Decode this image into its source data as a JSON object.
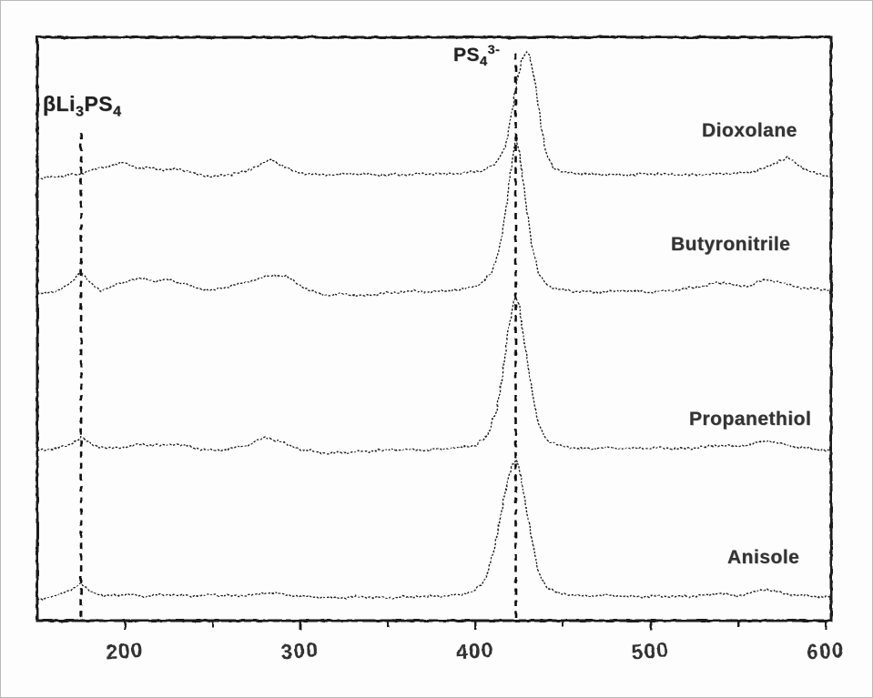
{
  "figure": {
    "phase_label": {
      "prefix": "βLi",
      "sub1": "3",
      "mid": "PS",
      "sub2": "4"
    },
    "peak_label": {
      "prefix": "PS",
      "sub": "4",
      "sup": "3-"
    }
  },
  "colors": {
    "line": "#1a1a1a",
    "dashed": "#111111",
    "text": "#333333",
    "background": "#fdfdfd"
  },
  "chart_data": {
    "type": "line",
    "title": "",
    "xlabel": "",
    "ylabel": "",
    "legend_position": "right-inline",
    "grid": false,
    "x_axis": {
      "min": 150,
      "max": 603,
      "major_ticks": [
        200,
        300,
        400,
        500,
        600
      ],
      "minor_ticks": [
        250,
        350,
        450,
        550
      ]
    },
    "y_axis": {
      "min": 0,
      "max": 1,
      "visible": false,
      "note": "intensity a.u., spectra stacked with offsets"
    },
    "dashed_lines": [
      {
        "x": 175,
        "y_top_norm": 0.836
      },
      {
        "x": 423,
        "y_top_norm": 0.972
      }
    ],
    "series": [
      {
        "name": "Dioxolane",
        "points": [
          [
            150,
            0.757
          ],
          [
            160,
            0.761
          ],
          [
            170,
            0.764
          ],
          [
            178,
            0.769
          ],
          [
            188,
            0.778
          ],
          [
            200,
            0.785
          ],
          [
            208,
            0.775
          ],
          [
            215,
            0.777
          ],
          [
            222,
            0.772
          ],
          [
            230,
            0.775
          ],
          [
            240,
            0.766
          ],
          [
            250,
            0.761
          ],
          [
            258,
            0.764
          ],
          [
            265,
            0.768
          ],
          [
            272,
            0.774
          ],
          [
            283,
            0.791
          ],
          [
            290,
            0.78
          ],
          [
            297,
            0.769
          ],
          [
            310,
            0.764
          ],
          [
            330,
            0.766
          ],
          [
            350,
            0.764
          ],
          [
            370,
            0.766
          ],
          [
            385,
            0.766
          ],
          [
            395,
            0.768
          ],
          [
            405,
            0.772
          ],
          [
            412,
            0.785
          ],
          [
            417,
            0.813
          ],
          [
            421,
            0.875
          ],
          [
            424,
            0.93
          ],
          [
            427,
            0.966
          ],
          [
            429,
            0.977
          ],
          [
            431,
            0.969
          ],
          [
            434,
            0.922
          ],
          [
            437,
            0.86
          ],
          [
            440,
            0.805
          ],
          [
            444,
            0.778
          ],
          [
            450,
            0.769
          ],
          [
            460,
            0.766
          ],
          [
            480,
            0.764
          ],
          [
            500,
            0.766
          ],
          [
            520,
            0.764
          ],
          [
            540,
            0.766
          ],
          [
            555,
            0.768
          ],
          [
            565,
            0.775
          ],
          [
            572,
            0.786
          ],
          [
            578,
            0.794
          ],
          [
            584,
            0.782
          ],
          [
            590,
            0.771
          ],
          [
            595,
            0.766
          ],
          [
            600,
            0.763
          ],
          [
            603,
            0.761
          ]
        ]
      },
      {
        "name": "Butyronitrile",
        "points": [
          [
            150,
            0.56
          ],
          [
            158,
            0.563
          ],
          [
            165,
            0.569
          ],
          [
            170,
            0.582
          ],
          [
            175,
            0.598
          ],
          [
            180,
            0.579
          ],
          [
            186,
            0.566
          ],
          [
            195,
            0.576
          ],
          [
            203,
            0.583
          ],
          [
            210,
            0.587
          ],
          [
            218,
            0.582
          ],
          [
            225,
            0.585
          ],
          [
            232,
            0.579
          ],
          [
            240,
            0.571
          ],
          [
            250,
            0.566
          ],
          [
            260,
            0.573
          ],
          [
            268,
            0.579
          ],
          [
            277,
            0.587
          ],
          [
            285,
            0.593
          ],
          [
            292,
            0.59
          ],
          [
            298,
            0.579
          ],
          [
            305,
            0.566
          ],
          [
            315,
            0.558
          ],
          [
            325,
            0.56
          ],
          [
            335,
            0.557
          ],
          [
            345,
            0.56
          ],
          [
            355,
            0.563
          ],
          [
            365,
            0.565
          ],
          [
            375,
            0.563
          ],
          [
            385,
            0.566
          ],
          [
            395,
            0.569
          ],
          [
            403,
            0.576
          ],
          [
            409,
            0.594
          ],
          [
            414,
            0.641
          ],
          [
            418,
            0.719
          ],
          [
            421,
            0.789
          ],
          [
            423,
            0.825
          ],
          [
            425,
            0.805
          ],
          [
            428,
            0.735
          ],
          [
            432,
            0.649
          ],
          [
            436,
            0.594
          ],
          [
            441,
            0.576
          ],
          [
            447,
            0.568
          ],
          [
            455,
            0.565
          ],
          [
            470,
            0.563
          ],
          [
            485,
            0.566
          ],
          [
            500,
            0.563
          ],
          [
            512,
            0.566
          ],
          [
            525,
            0.571
          ],
          [
            535,
            0.577
          ],
          [
            542,
            0.58
          ],
          [
            550,
            0.573
          ],
          [
            558,
            0.576
          ],
          [
            566,
            0.585
          ],
          [
            572,
            0.582
          ],
          [
            580,
            0.574
          ],
          [
            590,
            0.569
          ],
          [
            600,
            0.568
          ],
          [
            603,
            0.566
          ]
        ]
      },
      {
        "name": "Propanethiol",
        "points": [
          [
            150,
            0.292
          ],
          [
            160,
            0.295
          ],
          [
            168,
            0.301
          ],
          [
            175,
            0.314
          ],
          [
            182,
            0.301
          ],
          [
            190,
            0.295
          ],
          [
            200,
            0.298
          ],
          [
            210,
            0.303
          ],
          [
            220,
            0.3
          ],
          [
            230,
            0.303
          ],
          [
            240,
            0.296
          ],
          [
            250,
            0.292
          ],
          [
            260,
            0.295
          ],
          [
            270,
            0.301
          ],
          [
            280,
            0.314
          ],
          [
            287,
            0.309
          ],
          [
            294,
            0.3
          ],
          [
            302,
            0.292
          ],
          [
            315,
            0.287
          ],
          [
            330,
            0.289
          ],
          [
            345,
            0.292
          ],
          [
            360,
            0.293
          ],
          [
            375,
            0.293
          ],
          [
            390,
            0.296
          ],
          [
            400,
            0.301
          ],
          [
            407,
            0.317
          ],
          [
            412,
            0.36
          ],
          [
            416,
            0.431
          ],
          [
            419,
            0.501
          ],
          [
            422,
            0.548
          ],
          [
            423,
            0.555
          ],
          [
            425,
            0.54
          ],
          [
            428,
            0.477
          ],
          [
            432,
            0.399
          ],
          [
            436,
            0.337
          ],
          [
            441,
            0.309
          ],
          [
            448,
            0.3
          ],
          [
            460,
            0.295
          ],
          [
            475,
            0.296
          ],
          [
            490,
            0.295
          ],
          [
            505,
            0.296
          ],
          [
            520,
            0.295
          ],
          [
            532,
            0.298
          ],
          [
            540,
            0.301
          ],
          [
            548,
            0.298
          ],
          [
            558,
            0.303
          ],
          [
            566,
            0.309
          ],
          [
            574,
            0.304
          ],
          [
            582,
            0.298
          ],
          [
            592,
            0.295
          ],
          [
            600,
            0.292
          ],
          [
            603,
            0.29
          ]
        ]
      },
      {
        "name": "Anisole",
        "points": [
          [
            150,
            0.036
          ],
          [
            158,
            0.041
          ],
          [
            166,
            0.048
          ],
          [
            172,
            0.058
          ],
          [
            175,
            0.062
          ],
          [
            180,
            0.051
          ],
          [
            188,
            0.042
          ],
          [
            200,
            0.045
          ],
          [
            212,
            0.042
          ],
          [
            225,
            0.045
          ],
          [
            238,
            0.042
          ],
          [
            250,
            0.045
          ],
          [
            262,
            0.042
          ],
          [
            275,
            0.045
          ],
          [
            283,
            0.048
          ],
          [
            292,
            0.044
          ],
          [
            305,
            0.041
          ],
          [
            320,
            0.039
          ],
          [
            335,
            0.041
          ],
          [
            350,
            0.039
          ],
          [
            365,
            0.041
          ],
          [
            380,
            0.042
          ],
          [
            392,
            0.045
          ],
          [
            400,
            0.051
          ],
          [
            406,
            0.072
          ],
          [
            411,
            0.126
          ],
          [
            415,
            0.189
          ],
          [
            419,
            0.248
          ],
          [
            422,
            0.273
          ],
          [
            423,
            0.278
          ],
          [
            425,
            0.264
          ],
          [
            428,
            0.212
          ],
          [
            432,
            0.142
          ],
          [
            436,
            0.083
          ],
          [
            441,
            0.056
          ],
          [
            448,
            0.047
          ],
          [
            460,
            0.042
          ],
          [
            475,
            0.044
          ],
          [
            490,
            0.041
          ],
          [
            505,
            0.042
          ],
          [
            520,
            0.041
          ],
          [
            532,
            0.044
          ],
          [
            540,
            0.047
          ],
          [
            550,
            0.042
          ],
          [
            560,
            0.05
          ],
          [
            566,
            0.055
          ],
          [
            573,
            0.048
          ],
          [
            582,
            0.044
          ],
          [
            592,
            0.042
          ],
          [
            600,
            0.041
          ],
          [
            603,
            0.039
          ]
        ]
      }
    ]
  }
}
